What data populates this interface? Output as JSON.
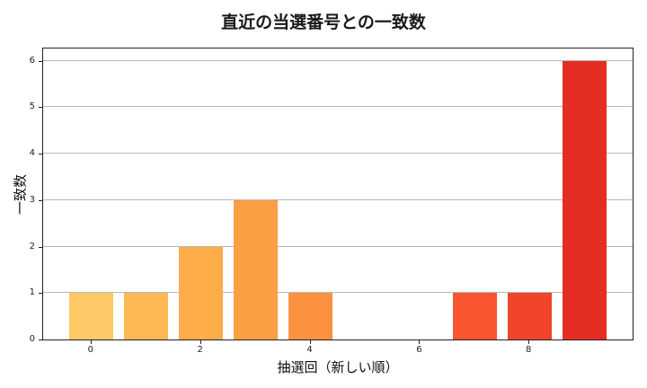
{
  "chart_data": {
    "type": "bar",
    "title": "直近の当選番号との一致数",
    "xlabel": "抽選回（新しい順）",
    "ylabel": "一致数",
    "x": [
      0,
      1,
      2,
      3,
      4,
      5,
      6,
      7,
      8,
      9
    ],
    "values": [
      1,
      1,
      2,
      3,
      1,
      0,
      0,
      1,
      1,
      6
    ],
    "colors": [
      "#fec966",
      "#feb954",
      "#fdac4a",
      "#fc9e43",
      "#fc913f",
      "#fd7e36",
      "#fd6b30",
      "#f9552e",
      "#f1442a",
      "#e42d23"
    ],
    "xticks": [
      "0",
      "2",
      "4",
      "6",
      "8"
    ],
    "yticks": [
      "0",
      "1",
      "2",
      "3",
      "4",
      "5",
      "6"
    ],
    "xlim": [
      -0.9,
      9.9
    ],
    "ylim": [
      0,
      6.3
    ],
    "grid": "y"
  }
}
